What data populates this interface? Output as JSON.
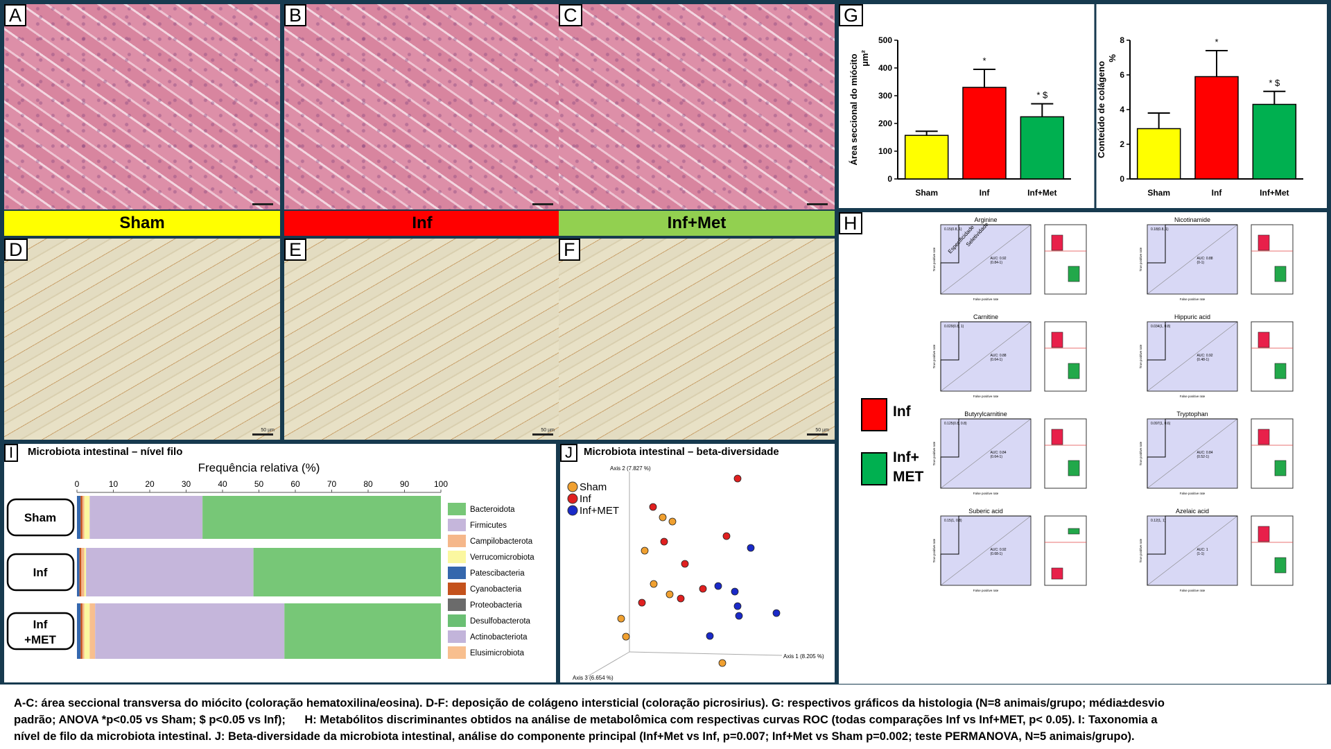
{
  "panels": {
    "A": "A",
    "B": "B",
    "C": "C",
    "D": "D",
    "E": "E",
    "F": "F",
    "G": "G",
    "H": "H",
    "I": "I",
    "J": "J"
  },
  "groups": {
    "sham": "Sham",
    "inf": "Inf",
    "infmet": "Inf+Met"
  },
  "colors": {
    "sham": "#ffff00",
    "inf": "#ff0000",
    "infmet": "#00b050",
    "infmet_label": "#92d050"
  },
  "scale_text": "50 µm",
  "g_charts": [
    {
      "type": "bar",
      "categories": [
        "Sham",
        "Inf",
        "Inf+Met"
      ],
      "values": [
        157,
        330,
        224
      ],
      "errors": [
        15,
        65,
        47
      ],
      "ylabel": "Área seccional do miócito",
      "ylabel2": "µm²",
      "ylim": [
        0,
        500
      ],
      "yticks": [
        "0",
        "100",
        "200",
        "300",
        "400",
        "500"
      ],
      "annotations": [
        "",
        "*",
        "* $"
      ]
    },
    {
      "type": "bar",
      "categories": [
        "Sham",
        "Inf",
        "Inf+Met"
      ],
      "values": [
        2.9,
        5.9,
        4.3
      ],
      "errors": [
        0.9,
        1.5,
        0.75
      ],
      "ylabel": "Conteúdo de colágeno",
      "ylabel2": "%",
      "ylim": [
        0,
        8
      ],
      "yticks": [
        "0",
        "2",
        "4",
        "6",
        "8"
      ],
      "annotations": [
        "",
        "*",
        "* $"
      ]
    }
  ],
  "h": {
    "legend": [
      {
        "label": "Inf",
        "color": "#ff0000"
      },
      {
        "label": "Inf+\nMET",
        "color": "#00b050"
      }
    ],
    "legend_inf": "Inf",
    "legend_met1": "Inf+",
    "legend_met2": "MET",
    "roc_xlabel": "False positive rate",
    "roc_ylabel": "True positive rate",
    "arrow_label1": "Especificidade",
    "arrow_label2": "Seletividade",
    "metabolites": [
      {
        "name": "Arginine",
        "auc": "AUC: 0.92",
        "ci": "(0.84-1)",
        "point": "0.15(0.8, 1)"
      },
      {
        "name": "Nicotinamide",
        "auc": "AUC: 0.88",
        "ci": "(0-1)",
        "point": "0.18(0.8, 1)"
      },
      {
        "name": "Carnitine",
        "auc": "AUC: 0.88",
        "ci": "(0.64-1)",
        "point": "0.029(0.8, 1)"
      },
      {
        "name": "Hippuric acid",
        "auc": "AUC: 0.92",
        "ci": "(0.48-1)",
        "point": "0.034(1, 0.8)"
      },
      {
        "name": "Butyrylcarnitine",
        "auc": "AUC: 0.84",
        "ci": "(0.64-1)",
        "point": "0.125(0.8, 0.8)"
      },
      {
        "name": "Tryptophan",
        "auc": "AUC: 0.84",
        "ci": "(0.52-1)",
        "point": "0.097(1, 0.6)"
      },
      {
        "name": "Suberic acid",
        "auc": "AUC: 0.92",
        "ci": "(0.68-1)",
        "point": "0.15(1, 0.8)"
      },
      {
        "name": "Azelaic acid",
        "auc": "AUC: 1",
        "ci": "(1-1)",
        "point": "0.12(1, 1)"
      }
    ]
  },
  "i": {
    "title": "Microbiota intestinal – nível filo",
    "axis_title": "Frequência relativa (%)",
    "ticks": [
      "0",
      "10",
      "20",
      "30",
      "40",
      "50",
      "60",
      "70",
      "80",
      "90",
      "100"
    ],
    "groups": [
      "Sham",
      "Inf",
      "Inf\n+MET"
    ],
    "group_line1": [
      "Sham",
      "Inf",
      "Inf"
    ],
    "group_line2": [
      "",
      "",
      "+MET"
    ],
    "phyla": [
      {
        "name": "Bacteroidota",
        "color": "#77c777"
      },
      {
        "name": "Firmicutes",
        "color": "#c5b6db"
      },
      {
        "name": "Campilobacterota",
        "color": "#f5b78a"
      },
      {
        "name": "Verrucomicrobiota",
        "color": "#fbf7a0"
      },
      {
        "name": "Patescibacteria",
        "color": "#3567ad"
      },
      {
        "name": "Cyanobacteria",
        "color": "#c4521c"
      },
      {
        "name": "Proteobacteria",
        "color": "#6b6b6b"
      },
      {
        "name": "Desulfobacterota",
        "color": "#6abf73"
      },
      {
        "name": "Actinobacteriota",
        "color": "#c2b4da"
      },
      {
        "name": "Elusimicrobiota",
        "color": "#f8bf8f"
      }
    ],
    "chart_data": {
      "type": "bar",
      "orientation": "horizontal-stacked",
      "categories": [
        "Sham",
        "Inf",
        "Inf+MET"
      ],
      "series": [
        {
          "name": "Patescibacteria",
          "values": [
            1,
            0.7,
            1
          ]
        },
        {
          "name": "Cyanobacteria",
          "values": [
            0.5,
            0.5,
            0.5
          ]
        },
        {
          "name": "Campilobacterota",
          "values": [
            0.5,
            0.8,
            0.5
          ]
        },
        {
          "name": "Verrucomicrobiota",
          "values": [
            1.5,
            0.5,
            1.5
          ]
        },
        {
          "name": "Elusimicrobiota",
          "values": [
            0,
            0,
            1.5
          ]
        },
        {
          "name": "Firmicutes",
          "values": [
            31,
            46,
            52
          ]
        },
        {
          "name": "Bacteroidota",
          "values": [
            65.5,
            51.5,
            43
          ]
        }
      ],
      "xlim": [
        0,
        100
      ]
    }
  },
  "j": {
    "title": "Microbiota intestinal – beta-diversidade",
    "axis1": "Axis 1 (8.205 %)",
    "axis2": "Axis 2 (7.827 %)",
    "axis3": "Axis 3 (6.654 %)",
    "legend": [
      {
        "label": "Sham",
        "color": "#f0a030"
      },
      {
        "label": "Inf",
        "color": "#e02020"
      },
      {
        "label": "Inf+MET",
        "color": "#1a2ac8"
      }
    ]
  },
  "caption": {
    "line1": "A-C: área seccional transversa do miócito (coloração hematoxilina/eosina). D-F: deposição de colágeno intersticial (coloração picrosirius). G: respectivos gráficos da histologia (N=8 animais/grupo; média±desvio",
    "line2": "padrão; ANOVA *p<0.05 vs Sham; $ p<0.05 vs Inf);      H: Metabólitos discriminantes obtidos na análise de metabolômica com respectivas curvas ROC (todas comparações Inf vs Inf+MET, p< 0.05). I: Taxonomia a",
    "line3": "nível de filo da microbiota intestinal. J: Beta-diversidade da microbiota intestinal, análise do componente principal (Inf+Met vs Inf, p=0.007; Inf+Met vs Sham p=0.002; teste PERMANOVA, N=5 animais/grupo)."
  }
}
